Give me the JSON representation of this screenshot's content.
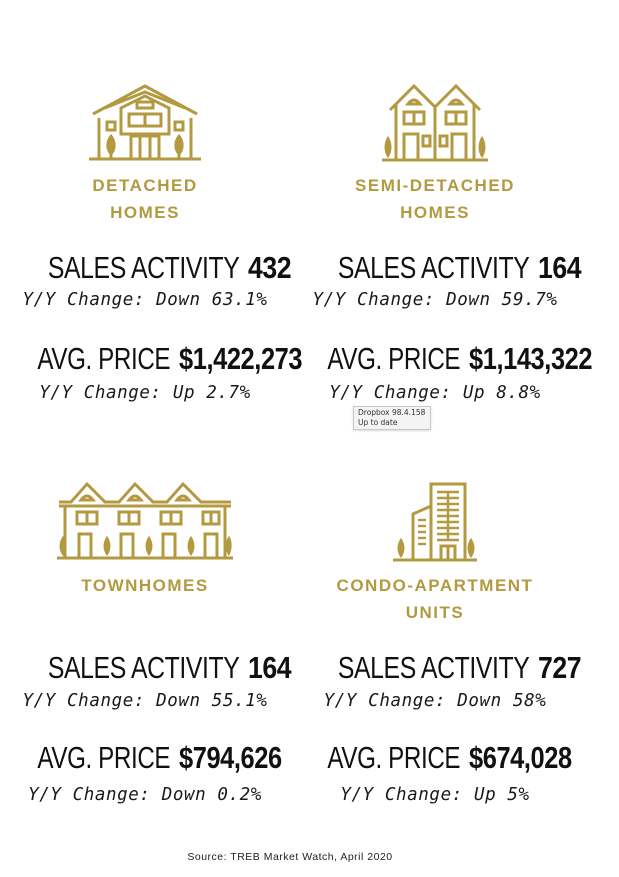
{
  "sections": [
    {
      "title_line1": "DETACHED",
      "title_line2": "HOMES",
      "icon": "detached-house-icon",
      "sales_label": "SALES ACTIVITY",
      "sales_value": "432",
      "sales_change": "Y/Y Change: Down 63.1%",
      "price_label": "AVG. PRICE",
      "price_value": "$1,422,273",
      "price_change": "Y/Y Change: Up 2.7%"
    },
    {
      "title_line1": "SEMI-DETACHED",
      "title_line2": "HOMES",
      "icon": "semi-detached-house-icon",
      "sales_label": "SALES ACTIVITY",
      "sales_value": "164",
      "sales_change": "Y/Y Change: Down 59.7%",
      "price_label": "AVG. PRICE",
      "price_value": "$1,143,322",
      "price_change": "Y/Y Change: Up 8.8%"
    },
    {
      "title_line1": "TOWNHOMES",
      "title_line2": "",
      "icon": "townhouse-icon",
      "sales_label": "SALES ACTIVITY",
      "sales_value": "164",
      "sales_change": "Y/Y Change: Down 55.1%",
      "price_label": "AVG. PRICE",
      "price_value": "$794,626",
      "price_change": "Y/Y Change: Down 0.2%"
    },
    {
      "title_line1": "CONDO-APARTMENT",
      "title_line2": "UNITS",
      "icon": "condo-building-icon",
      "sales_label": "SALES ACTIVITY",
      "sales_value": "727",
      "sales_change": "Y/Y Change: Down 58%",
      "price_label": "AVG. PRICE",
      "price_value": "$674,028",
      "price_change": "Y/Y Change: Up 5%"
    }
  ],
  "tooltip": {
    "line1": "Dropbox 98.4.158",
    "line2": "Up to date"
  },
  "source": "Source: TREB Market Watch, April 2020",
  "colors": {
    "gold": "#b39a40",
    "text": "#111111"
  }
}
